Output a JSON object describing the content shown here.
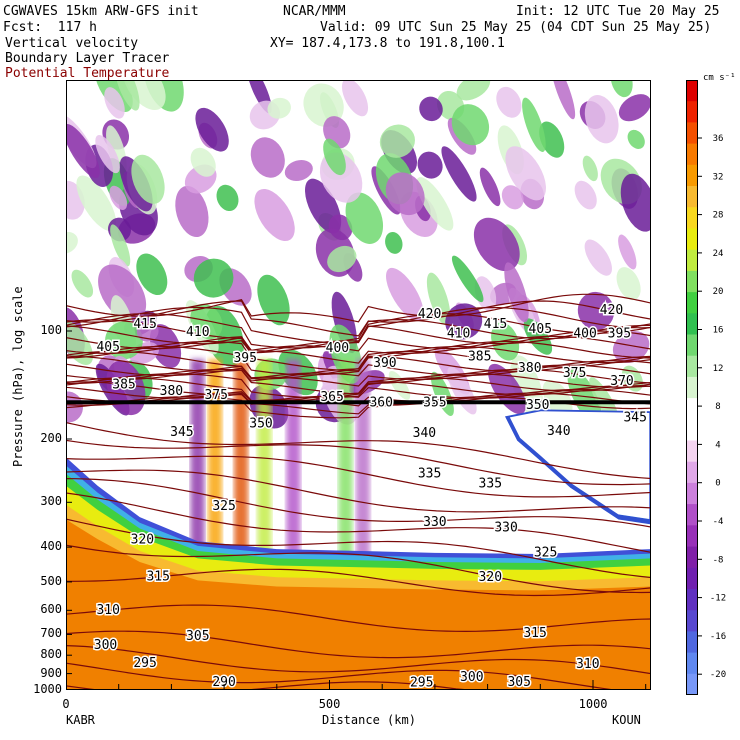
{
  "header": {
    "model": "CGWAVES 15km ARW-GFS init",
    "forecast": "Fcst:  117 h",
    "field1": "Vertical velocity",
    "field2": "Boundary Layer Tracer",
    "field3": "Potential Temperature",
    "org": "NCAR/MMM",
    "init": "Init: 12 UTC Tue 20 May 25",
    "valid": "Valid: 09 UTC Sun 25 May 25 (04 CDT Sun 25 May 25)",
    "xy": "XY= 187.4,173.8 to 191.8,100.1"
  },
  "colors": {
    "theta_contour": "#7a0a0a",
    "tropopause": "#000000",
    "field3_text": "#8b0000"
  },
  "chart_data": {
    "type": "heatmap",
    "xlabel": "Distance (km)",
    "ylabel": "Pressure (hPa), log scale",
    "x_ticks": [
      0,
      500,
      1000
    ],
    "xlim": [
      0,
      1110
    ],
    "y_ticks": [
      100,
      200,
      300,
      400,
      500,
      600,
      700,
      800,
      900,
      1000
    ],
    "ylim": [
      1000,
      20
    ],
    "y_scale": "log",
    "x_start_label": "KABR",
    "x_end_label": "KOUN",
    "colorbar": {
      "units": "cm s⁻¹",
      "tick_labels": [
        "36",
        "32",
        "28",
        "24",
        "20",
        "16",
        "12",
        "8",
        "4",
        "0",
        "-4",
        "-8",
        "-12",
        "-16",
        "-20"
      ],
      "colors": [
        "#dd0000",
        "#ee2200",
        "#f45000",
        "#f87a00",
        "#f89a00",
        "#f8ba30",
        "#f8d820",
        "#e8ec10",
        "#c0ec40",
        "#80e060",
        "#40d040",
        "#30c050",
        "#70d870",
        "#a8e8a0",
        "#d8f4d0",
        "#ffffff",
        "#ffffff",
        "#f4d4f0",
        "#e0a8e8",
        "#cc80dc",
        "#b050c8",
        "#9830b8",
        "#8020a8",
        "#7020b0",
        "#6030c0",
        "#5848d0",
        "#5068e0",
        "#6088f0",
        "#7898f8"
      ]
    },
    "theta_labels": [
      {
        "t": "420",
        "x": 690,
        "p": 89
      },
      {
        "t": "420",
        "x": 1035,
        "p": 87
      },
      {
        "t": "415",
        "x": 150,
        "p": 95
      },
      {
        "t": "415",
        "x": 815,
        "p": 95
      },
      {
        "t": "410",
        "x": 250,
        "p": 100
      },
      {
        "t": "410",
        "x": 745,
        "p": 101
      },
      {
        "t": "405",
        "x": 80,
        "p": 110
      },
      {
        "t": "405",
        "x": 900,
        "p": 98
      },
      {
        "t": "400",
        "x": 515,
        "p": 111
      },
      {
        "t": "400",
        "x": 985,
        "p": 101
      },
      {
        "t": "395",
        "x": 1050,
        "p": 101
      },
      {
        "t": "395",
        "x": 340,
        "p": 118
      },
      {
        "t": "390",
        "x": 605,
        "p": 122
      },
      {
        "t": "385",
        "x": 110,
        "p": 140
      },
      {
        "t": "385",
        "x": 785,
        "p": 117
      },
      {
        "t": "380",
        "x": 200,
        "p": 146
      },
      {
        "t": "380",
        "x": 880,
        "p": 126
      },
      {
        "t": "375",
        "x": 285,
        "p": 150
      },
      {
        "t": "375",
        "x": 965,
        "p": 130
      },
      {
        "t": "370",
        "x": 1055,
        "p": 137
      },
      {
        "t": "365",
        "x": 505,
        "p": 152
      },
      {
        "t": "360",
        "x": 598,
        "p": 157
      },
      {
        "t": "355",
        "x": 700,
        "p": 157
      },
      {
        "t": "350",
        "x": 370,
        "p": 180
      },
      {
        "t": "350",
        "x": 895,
        "p": 160
      },
      {
        "t": "345",
        "x": 220,
        "p": 190
      },
      {
        "t": "345",
        "x": 1080,
        "p": 173
      },
      {
        "t": "340",
        "x": 680,
        "p": 191
      },
      {
        "t": "340",
        "x": 935,
        "p": 189
      },
      {
        "t": "335",
        "x": 690,
        "p": 248
      },
      {
        "t": "335",
        "x": 805,
        "p": 264
      },
      {
        "t": "330",
        "x": 700,
        "p": 338
      },
      {
        "t": "330",
        "x": 835,
        "p": 350
      },
      {
        "t": "325",
        "x": 300,
        "p": 305
      },
      {
        "t": "325",
        "x": 910,
        "p": 412
      },
      {
        "t": "320",
        "x": 145,
        "p": 378
      },
      {
        "t": "320",
        "x": 805,
        "p": 482
      },
      {
        "t": "315",
        "x": 175,
        "p": 480
      },
      {
        "t": "315",
        "x": 890,
        "p": 690
      },
      {
        "t": "310",
        "x": 80,
        "p": 595
      },
      {
        "t": "310",
        "x": 990,
        "p": 840
      },
      {
        "t": "305",
        "x": 250,
        "p": 702
      },
      {
        "t": "305",
        "x": 860,
        "p": 945
      },
      {
        "t": "300",
        "x": 75,
        "p": 745
      },
      {
        "t": "300",
        "x": 770,
        "p": 915
      },
      {
        "t": "295",
        "x": 150,
        "p": 835
      },
      {
        "t": "295",
        "x": 675,
        "p": 948
      },
      {
        "t": "290",
        "x": 300,
        "p": 945
      }
    ]
  }
}
